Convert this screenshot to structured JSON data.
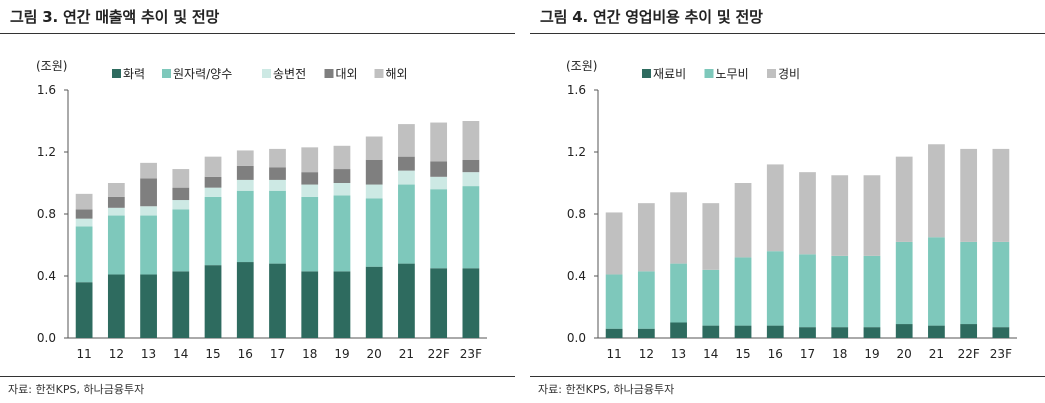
{
  "charts": [
    {
      "figure_title": "그림 3. 연간 매출액 추이 및 전망",
      "source": "자료: 한전KPS, 하나금융투자",
      "chart_data": {
        "type": "bar",
        "stacked": true,
        "unit_label": "(조원)",
        "categories": [
          "11",
          "12",
          "13",
          "14",
          "15",
          "16",
          "17",
          "18",
          "19",
          "20",
          "21",
          "22F",
          "23F"
        ],
        "ylim": [
          0,
          1.6
        ],
        "yticks": [
          "0.0",
          "0.4",
          "0.8",
          "1.2",
          "1.6"
        ],
        "legend_position": "top",
        "grid": false,
        "series": [
          {
            "name": "화력",
            "color": "#2e6b5f",
            "values": [
              0.36,
              0.41,
              0.41,
              0.43,
              0.47,
              0.49,
              0.48,
              0.43,
              0.43,
              0.46,
              0.48,
              0.45,
              0.45
            ]
          },
          {
            "name": "원자력/양수",
            "color": "#7ec8bb",
            "values": [
              0.36,
              0.38,
              0.38,
              0.4,
              0.44,
              0.46,
              0.47,
              0.48,
              0.49,
              0.44,
              0.51,
              0.51,
              0.53
            ]
          },
          {
            "name": "송변전",
            "color": "#cde9e4",
            "values": [
              0.05,
              0.05,
              0.06,
              0.06,
              0.06,
              0.07,
              0.07,
              0.08,
              0.08,
              0.09,
              0.09,
              0.08,
              0.09
            ]
          },
          {
            "name": "대외",
            "color": "#7f7f7f",
            "values": [
              0.06,
              0.07,
              0.18,
              0.08,
              0.07,
              0.09,
              0.08,
              0.08,
              0.09,
              0.16,
              0.09,
              0.1,
              0.08
            ]
          },
          {
            "name": "해외",
            "color": "#c0c0c0",
            "values": [
              0.1,
              0.09,
              0.1,
              0.12,
              0.13,
              0.1,
              0.12,
              0.16,
              0.15,
              0.15,
              0.21,
              0.25,
              0.25
            ]
          }
        ]
      }
    },
    {
      "figure_title": "그림 4. 연간 영업비용 추이 및 전망",
      "source": "자료: 한전KPS, 하나금융투자",
      "chart_data": {
        "type": "bar",
        "stacked": true,
        "unit_label": "(조원)",
        "categories": [
          "11",
          "12",
          "13",
          "14",
          "15",
          "16",
          "17",
          "18",
          "19",
          "20",
          "21",
          "22F",
          "23F"
        ],
        "ylim": [
          0,
          1.6
        ],
        "yticks": [
          "0.0",
          "0.4",
          "0.8",
          "1.2",
          "1.6"
        ],
        "legend_position": "top",
        "grid": false,
        "series": [
          {
            "name": "재료비",
            "color": "#2e6b5f",
            "values": [
              0.06,
              0.06,
              0.1,
              0.08,
              0.08,
              0.08,
              0.07,
              0.07,
              0.07,
              0.09,
              0.08,
              0.09,
              0.07
            ]
          },
          {
            "name": "노무비",
            "color": "#7ec8bb",
            "values": [
              0.35,
              0.37,
              0.38,
              0.36,
              0.44,
              0.48,
              0.47,
              0.46,
              0.46,
              0.53,
              0.57,
              0.53,
              0.55
            ]
          },
          {
            "name": "경비",
            "color": "#c0c0c0",
            "values": [
              0.4,
              0.44,
              0.46,
              0.43,
              0.48,
              0.56,
              0.53,
              0.52,
              0.52,
              0.55,
              0.6,
              0.6,
              0.6
            ]
          }
        ]
      }
    }
  ]
}
